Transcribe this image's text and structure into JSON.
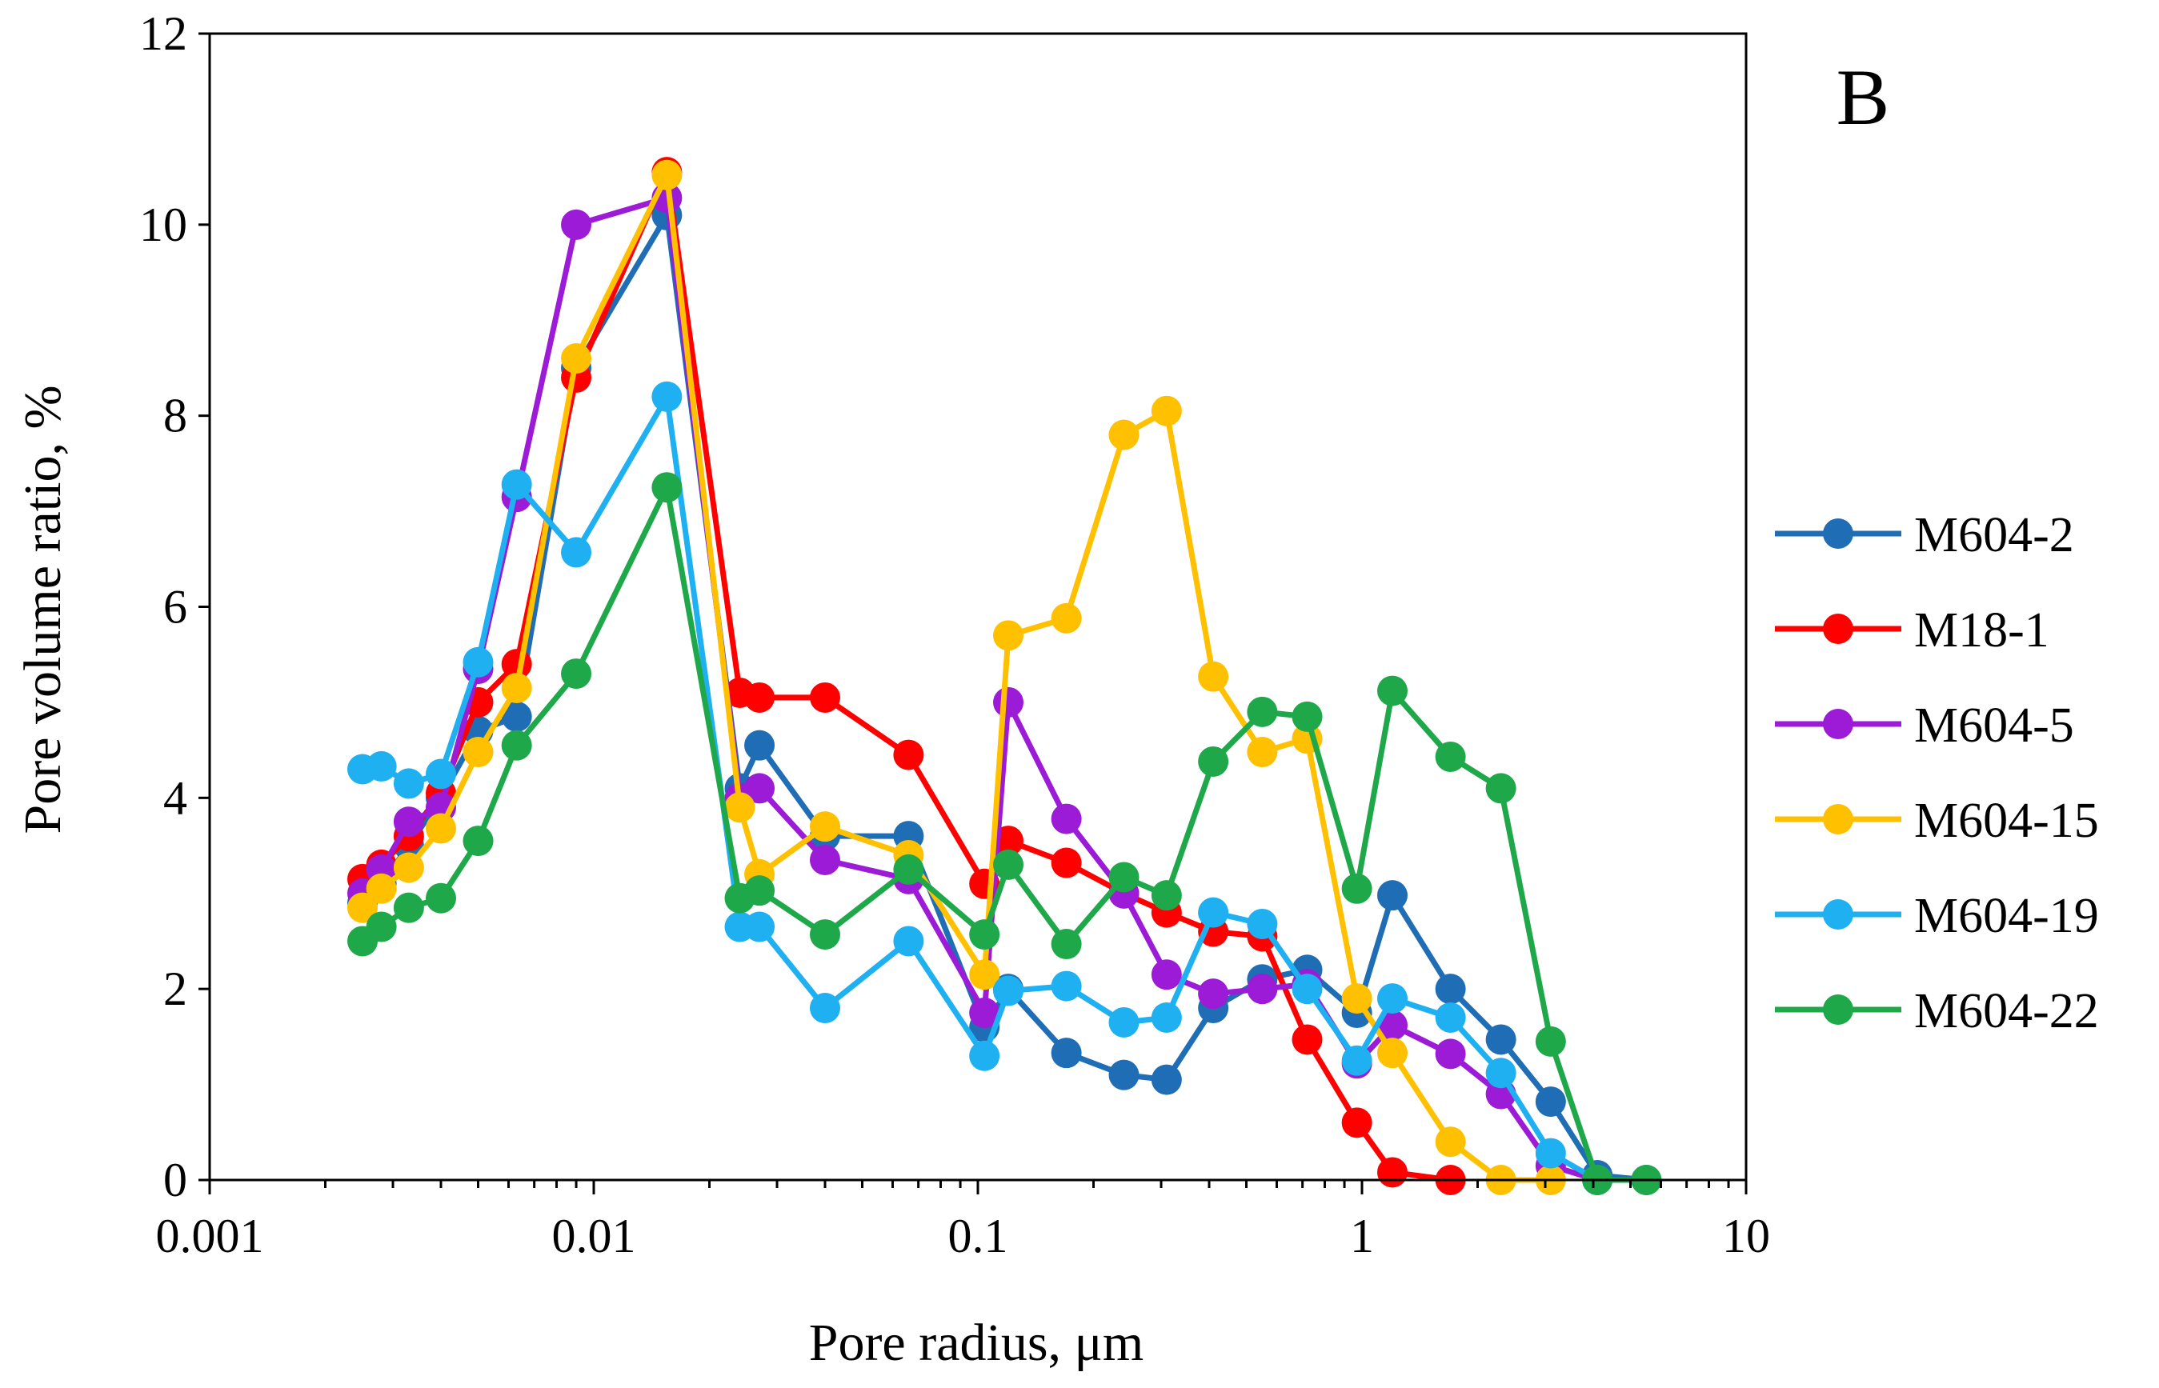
{
  "chart_data": {
    "type": "line",
    "panel_label": "B",
    "xlabel": "Pore radius, μm",
    "ylabel": "Pore volume ratio, %",
    "xscale": "log",
    "xlim": [
      0.001,
      10
    ],
    "ylim": [
      0,
      12
    ],
    "x_ticks": [
      0.001,
      0.01,
      0.1,
      1,
      10
    ],
    "x_tick_labels": [
      "0.001",
      "0.01",
      "0.1",
      "1",
      "10"
    ],
    "y_ticks": [
      0,
      2,
      4,
      6,
      8,
      10,
      12
    ],
    "y_tick_labels": [
      "0",
      "2",
      "4",
      "6",
      "8",
      "10",
      "12"
    ],
    "grid": false,
    "legend_position": "right",
    "series": [
      {
        "name": "M604-2",
        "color": "#1F6DB5",
        "points": [
          [
            0.0025,
            2.9
          ],
          [
            0.0028,
            3.1
          ],
          [
            0.0033,
            3.5
          ],
          [
            0.004,
            4.0
          ],
          [
            0.005,
            4.7
          ],
          [
            0.0063,
            4.85
          ],
          [
            0.009,
            8.5
          ],
          [
            0.0155,
            10.1
          ],
          [
            0.024,
            4.1
          ],
          [
            0.027,
            4.55
          ],
          [
            0.04,
            3.6
          ],
          [
            0.066,
            3.6
          ],
          [
            0.104,
            1.6
          ],
          [
            0.12,
            2.0
          ],
          [
            0.17,
            1.33
          ],
          [
            0.24,
            1.1
          ],
          [
            0.31,
            1.05
          ],
          [
            0.41,
            1.8
          ],
          [
            0.55,
            2.1
          ],
          [
            0.72,
            2.2
          ],
          [
            0.97,
            1.75
          ],
          [
            1.2,
            2.98
          ],
          [
            1.7,
            2.0
          ],
          [
            2.3,
            1.47
          ],
          [
            3.1,
            0.82
          ],
          [
            4.1,
            0.05
          ],
          [
            5.5,
            0.0
          ]
        ]
      },
      {
        "name": "M18-1",
        "color": "#FF0000",
        "points": [
          [
            0.0025,
            3.15
          ],
          [
            0.0028,
            3.3
          ],
          [
            0.0033,
            3.6
          ],
          [
            0.004,
            4.05
          ],
          [
            0.005,
            5.0
          ],
          [
            0.0063,
            5.4
          ],
          [
            0.009,
            8.4
          ],
          [
            0.0155,
            10.55
          ],
          [
            0.024,
            5.1
          ],
          [
            0.027,
            5.05
          ],
          [
            0.04,
            5.05
          ],
          [
            0.066,
            4.45
          ],
          [
            0.104,
            3.1
          ],
          [
            0.12,
            3.55
          ],
          [
            0.17,
            3.32
          ],
          [
            0.24,
            3.0
          ],
          [
            0.31,
            2.8
          ],
          [
            0.41,
            2.6
          ],
          [
            0.55,
            2.55
          ],
          [
            0.72,
            1.47
          ],
          [
            0.97,
            0.6
          ],
          [
            1.2,
            0.08
          ],
          [
            1.7,
            0.0
          ]
        ]
      },
      {
        "name": "M604-5",
        "color": "#9B1BD6",
        "points": [
          [
            0.0025,
            3.0
          ],
          [
            0.0028,
            3.25
          ],
          [
            0.0033,
            3.75
          ],
          [
            0.004,
            3.9
          ],
          [
            0.005,
            5.35
          ],
          [
            0.0063,
            7.15
          ],
          [
            0.009,
            10.0
          ],
          [
            0.0155,
            10.28
          ],
          [
            0.024,
            4.0
          ],
          [
            0.027,
            4.1
          ],
          [
            0.04,
            3.35
          ],
          [
            0.066,
            3.15
          ],
          [
            0.104,
            1.75
          ],
          [
            0.12,
            5.0
          ],
          [
            0.17,
            3.78
          ],
          [
            0.24,
            3.0
          ],
          [
            0.31,
            2.15
          ],
          [
            0.41,
            1.95
          ],
          [
            0.55,
            2.0
          ],
          [
            0.72,
            2.05
          ],
          [
            0.97,
            1.22
          ],
          [
            1.2,
            1.62
          ],
          [
            1.7,
            1.32
          ],
          [
            2.3,
            0.9
          ],
          [
            3.1,
            0.15
          ],
          [
            4.1,
            0.0
          ]
        ]
      },
      {
        "name": "M604-15",
        "color": "#FFC000",
        "points": [
          [
            0.0025,
            2.85
          ],
          [
            0.0028,
            3.05
          ],
          [
            0.0033,
            3.27
          ],
          [
            0.004,
            3.68
          ],
          [
            0.005,
            4.48
          ],
          [
            0.0063,
            5.15
          ],
          [
            0.009,
            8.6
          ],
          [
            0.0155,
            10.52
          ],
          [
            0.024,
            3.9
          ],
          [
            0.027,
            3.2
          ],
          [
            0.04,
            3.7
          ],
          [
            0.066,
            3.4
          ],
          [
            0.104,
            2.15
          ],
          [
            0.12,
            5.7
          ],
          [
            0.17,
            5.88
          ],
          [
            0.24,
            7.8
          ],
          [
            0.31,
            8.05
          ],
          [
            0.41,
            5.27
          ],
          [
            0.55,
            4.48
          ],
          [
            0.72,
            4.62
          ],
          [
            0.97,
            1.9
          ],
          [
            1.2,
            1.33
          ],
          [
            1.7,
            0.4
          ],
          [
            2.3,
            0.0
          ],
          [
            3.1,
            0.0
          ]
        ]
      },
      {
        "name": "M604-19",
        "color": "#1EB0F0",
        "points": [
          [
            0.0025,
            4.3
          ],
          [
            0.0028,
            4.33
          ],
          [
            0.0033,
            4.15
          ],
          [
            0.004,
            4.25
          ],
          [
            0.005,
            5.42
          ],
          [
            0.0063,
            7.28
          ],
          [
            0.009,
            6.57
          ],
          [
            0.0155,
            8.2
          ],
          [
            0.024,
            2.65
          ],
          [
            0.027,
            2.65
          ],
          [
            0.04,
            1.8
          ],
          [
            0.066,
            2.5
          ],
          [
            0.104,
            1.3
          ],
          [
            0.12,
            1.98
          ],
          [
            0.17,
            2.03
          ],
          [
            0.24,
            1.65
          ],
          [
            0.31,
            1.7
          ],
          [
            0.41,
            2.8
          ],
          [
            0.55,
            2.68
          ],
          [
            0.72,
            2.0
          ],
          [
            0.97,
            1.25
          ],
          [
            1.2,
            1.9
          ],
          [
            1.7,
            1.7
          ],
          [
            2.3,
            1.12
          ],
          [
            3.1,
            0.28
          ],
          [
            4.1,
            0.0
          ]
        ]
      },
      {
        "name": "M604-22",
        "color": "#1EA84A",
        "points": [
          [
            0.0025,
            2.5
          ],
          [
            0.0028,
            2.65
          ],
          [
            0.0033,
            2.85
          ],
          [
            0.004,
            2.95
          ],
          [
            0.005,
            3.55
          ],
          [
            0.0063,
            4.55
          ],
          [
            0.009,
            5.3
          ],
          [
            0.0155,
            7.25
          ],
          [
            0.024,
            2.95
          ],
          [
            0.027,
            3.03
          ],
          [
            0.04,
            2.57
          ],
          [
            0.066,
            3.25
          ],
          [
            0.104,
            2.57
          ],
          [
            0.12,
            3.3
          ],
          [
            0.17,
            2.47
          ],
          [
            0.24,
            3.17
          ],
          [
            0.31,
            2.98
          ],
          [
            0.41,
            4.38
          ],
          [
            0.55,
            4.9
          ],
          [
            0.72,
            4.85
          ],
          [
            0.97,
            3.05
          ],
          [
            1.2,
            5.12
          ],
          [
            1.7,
            4.43
          ],
          [
            2.3,
            4.1
          ],
          [
            3.1,
            1.45
          ],
          [
            4.1,
            0.0
          ],
          [
            5.5,
            0.0
          ]
        ]
      }
    ]
  }
}
